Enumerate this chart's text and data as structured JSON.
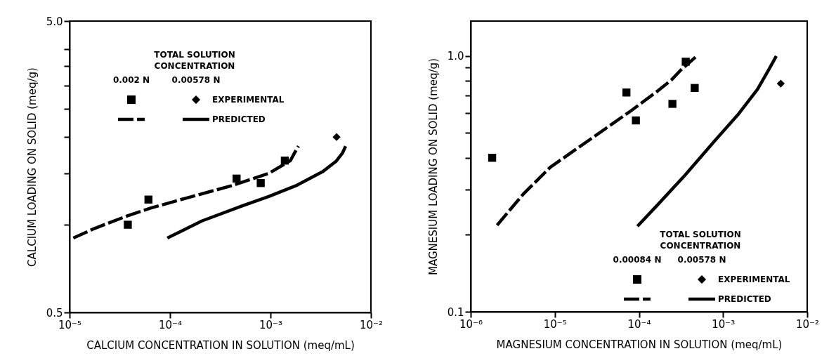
{
  "chart_data": [
    {
      "type": "scatter",
      "xlabel": "CALCIUM CONCENTRATION IN SOLUTION (meq/mL)",
      "ylabel": "CALCIUM LOADING ON SOLID (meq/g)",
      "log": "xy",
      "grid": false,
      "legend_title": "TOTAL SOLUTION\nCONCENTRATION",
      "annotations": [
        "0.002 N",
        "0.00578 N",
        "EXPERIMENTAL",
        "PREDICTED"
      ],
      "xlim": [
        1e-05,
        0.01
      ],
      "xticks": [
        {
          "value": 1e-05,
          "label": "10⁻⁵"
        },
        {
          "value": 0.0001,
          "label": "10⁻⁴"
        },
        {
          "value": 0.001,
          "label": "10⁻³"
        },
        {
          "value": 0.01,
          "label": "10⁻²"
        }
      ],
      "ylim": [
        0.5,
        5
      ],
      "yticks": [
        0.5,
        {
          "value": 1,
          "label": null
        },
        {
          "value": 1.5,
          "label": null
        },
        {
          "value": 2,
          "label": null
        },
        {
          "value": 2.5,
          "label": null
        },
        {
          "value": 3,
          "label": null
        },
        {
          "value": 3.5,
          "label": null
        },
        {
          "value": 4,
          "label": null
        },
        {
          "value": 5,
          "label": "5.0"
        }
      ],
      "series": [
        {
          "type": "scatter",
          "marker": "square",
          "color": "#000000",
          "x": [
            3.8e-05,
            6.1e-05,
            0.00046,
            0.0008,
            0.00139
          ],
          "values": [
            1.0,
            1.22,
            1.44,
            1.39,
            1.66
          ]
        },
        {
          "type": "scatter",
          "marker": "diamond",
          "color": "#000000",
          "x": [
            0.00455
          ],
          "values": [
            2.0
          ]
        },
        {
          "type": "line",
          "line_style": "dashed",
          "marker": "none",
          "color": "#000000",
          "x": [
            1.09e-05,
            1.76e-05,
            3.69e-05,
            6.4e-05,
            0.000152,
            0.000407,
            0.00096,
            0.00158,
            0.00173,
            0.0019
          ],
          "values": [
            0.9,
            0.97,
            1.07,
            1.14,
            1.24,
            1.36,
            1.5,
            1.66,
            1.76,
            1.86
          ]
        },
        {
          "type": "line",
          "line_style": "solid",
          "marker": "none",
          "color": "#000000",
          "x": [
            9.4e-05,
            0.000207,
            0.00052,
            0.00096,
            0.00178,
            0.0033,
            0.00449,
            0.0052,
            0.0056
          ],
          "values": [
            0.9,
            1.03,
            1.16,
            1.25,
            1.36,
            1.52,
            1.65,
            1.76,
            1.86
          ]
        }
      ]
    },
    {
      "type": "scatter",
      "xlabel": "MAGNESIUM CONCENTRATION IN SOLUTION (meq/mL)",
      "ylabel": "MAGNESIUM LOADING ON SOLID (meq/g)",
      "log": "xy",
      "grid": false,
      "legend_title": "TOTAL SOLUTION\nCONCENTRATION",
      "annotations": [
        "0.00084 N",
        "0.00578 N",
        "EXPERIMENTAL",
        "PREDICTED"
      ],
      "xlim": [
        1e-06,
        0.01
      ],
      "xticks": [
        {
          "value": 1e-06,
          "label": "10⁻⁶"
        },
        {
          "value": 1e-05,
          "label": "10⁻⁵"
        },
        {
          "value": 0.0001,
          "label": "10⁻⁴"
        },
        {
          "value": 0.001,
          "label": "10⁻³"
        },
        {
          "value": 0.01,
          "label": "10⁻²"
        }
      ],
      "ylim": [
        0.1,
        1.37
      ],
      "yticks": [
        0.1,
        {
          "value": 0.2,
          "label": null
        },
        {
          "value": 0.3,
          "label": null
        },
        {
          "value": 0.4,
          "label": null
        },
        {
          "value": 0.5,
          "label": null
        },
        {
          "value": 0.6,
          "label": null
        },
        {
          "value": 0.7,
          "label": null
        },
        {
          "value": 0.8,
          "label": null
        },
        {
          "value": 0.9,
          "label": null
        },
        {
          "value": 1,
          "label": "1.0"
        }
      ],
      "series": [
        {
          "type": "scatter",
          "marker": "square",
          "color": "#000000",
          "x": [
            1.8e-06,
            7.1e-05,
            9.2e-05,
            0.00025,
            0.00036,
            0.00046
          ],
          "values": [
            0.4,
            0.72,
            0.56,
            0.65,
            0.95,
            0.75
          ]
        },
        {
          "type": "scatter",
          "marker": "diamond",
          "color": "#000000",
          "x": [
            0.00485
          ],
          "values": [
            0.78
          ]
        },
        {
          "type": "line",
          "line_style": "dashed",
          "marker": "none",
          "color": "#000000",
          "x": [
            2.06e-06,
            4.2e-06,
            8.8e-06,
            1.84e-05,
            3.84e-05,
            8e-05,
            0.000167,
            0.000242,
            0.000313,
            0.00047
          ],
          "values": [
            0.218,
            0.288,
            0.367,
            0.435,
            0.515,
            0.61,
            0.73,
            0.805,
            0.88,
            0.99
          ]
        },
        {
          "type": "line",
          "line_style": "solid",
          "marker": "none",
          "color": "#000000",
          "x": [
            9.6e-05,
            0.000167,
            0.00035,
            0.00073,
            0.00153,
            0.00256,
            0.00343,
            0.00429
          ],
          "values": [
            0.216,
            0.262,
            0.341,
            0.451,
            0.594,
            0.74,
            0.875,
            1.0
          ]
        }
      ]
    }
  ]
}
